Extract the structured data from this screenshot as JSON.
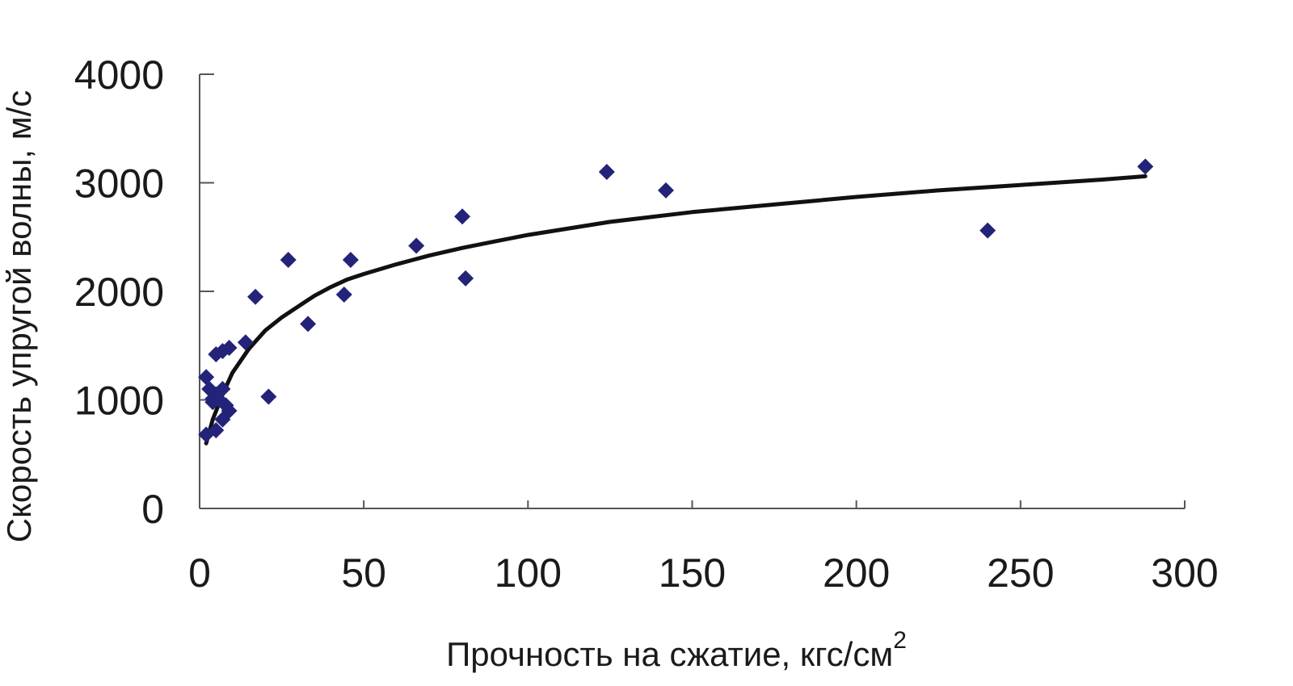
{
  "chart_data": {
    "type": "scatter",
    "xlabel": "Прочность на сжатие, кгс/см",
    "xlabel_superscript": "2",
    "ylabel": "Скорость упругой волны, м/с",
    "xlim": [
      0,
      300
    ],
    "ylim": [
      0,
      4000
    ],
    "x_ticks": [
      0,
      50,
      100,
      150,
      200,
      250,
      300
    ],
    "y_ticks": [
      0,
      1000,
      2000,
      3000,
      4000
    ],
    "grid": false,
    "legend": "none",
    "marker": "diamond",
    "marker_color": "#23237a",
    "trend_color": "#111111",
    "points": [
      {
        "x": 2,
        "y": 680
      },
      {
        "x": 2,
        "y": 1210
      },
      {
        "x": 3,
        "y": 1100
      },
      {
        "x": 4,
        "y": 980
      },
      {
        "x": 4,
        "y": 1010
      },
      {
        "x": 5,
        "y": 1420
      },
      {
        "x": 5,
        "y": 1050
      },
      {
        "x": 5,
        "y": 720
      },
      {
        "x": 6,
        "y": 1000
      },
      {
        "x": 7,
        "y": 1450
      },
      {
        "x": 7,
        "y": 820
      },
      {
        "x": 7,
        "y": 1100
      },
      {
        "x": 8,
        "y": 950
      },
      {
        "x": 9,
        "y": 1480
      },
      {
        "x": 9,
        "y": 900
      },
      {
        "x": 14,
        "y": 1530
      },
      {
        "x": 17,
        "y": 1950
      },
      {
        "x": 21,
        "y": 1030
      },
      {
        "x": 27,
        "y": 2290
      },
      {
        "x": 33,
        "y": 1700
      },
      {
        "x": 44,
        "y": 1970
      },
      {
        "x": 46,
        "y": 2290
      },
      {
        "x": 66,
        "y": 2420
      },
      {
        "x": 80,
        "y": 2690
      },
      {
        "x": 81,
        "y": 2120
      },
      {
        "x": 124,
        "y": 3100
      },
      {
        "x": 142,
        "y": 2930
      },
      {
        "x": 240,
        "y": 2560
      },
      {
        "x": 288,
        "y": 3150
      }
    ],
    "trend_line": [
      {
        "x": 2,
        "y": 600
      },
      {
        "x": 4,
        "y": 820
      },
      {
        "x": 7,
        "y": 1050
      },
      {
        "x": 10,
        "y": 1250
      },
      {
        "x": 15,
        "y": 1470
      },
      {
        "x": 20,
        "y": 1640
      },
      {
        "x": 25,
        "y": 1760
      },
      {
        "x": 30,
        "y": 1860
      },
      {
        "x": 35,
        "y": 1960
      },
      {
        "x": 40,
        "y": 2040
      },
      {
        "x": 45,
        "y": 2110
      },
      {
        "x": 50,
        "y": 2160
      },
      {
        "x": 60,
        "y": 2250
      },
      {
        "x": 70,
        "y": 2330
      },
      {
        "x": 80,
        "y": 2400
      },
      {
        "x": 90,
        "y": 2460
      },
      {
        "x": 100,
        "y": 2520
      },
      {
        "x": 125,
        "y": 2640
      },
      {
        "x": 150,
        "y": 2730
      },
      {
        "x": 175,
        "y": 2800
      },
      {
        "x": 200,
        "y": 2870
      },
      {
        "x": 225,
        "y": 2930
      },
      {
        "x": 250,
        "y": 2980
      },
      {
        "x": 275,
        "y": 3030
      },
      {
        "x": 288,
        "y": 3060
      }
    ]
  }
}
